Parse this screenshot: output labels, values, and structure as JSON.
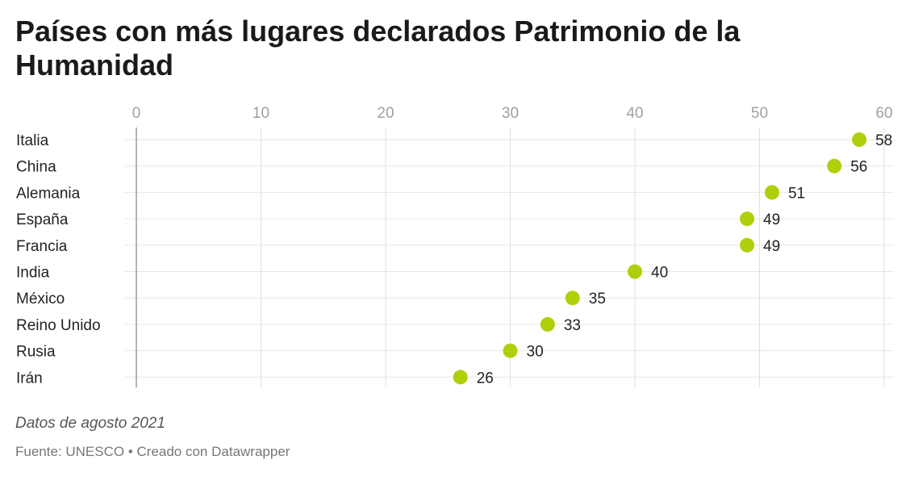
{
  "chart_data": {
    "type": "scatter",
    "title": "Países con más lugares declarados Patrimonio de la Humanidad",
    "categories": [
      "Italia",
      "China",
      "Alemania",
      "España",
      "Francia",
      "India",
      "México",
      "Reino Unido",
      "Rusia",
      "Irán"
    ],
    "values": [
      58,
      56,
      51,
      49,
      49,
      40,
      35,
      33,
      30,
      26
    ],
    "x_ticks": [
      "0",
      "10",
      "20",
      "30",
      "40",
      "50",
      "60"
    ],
    "xlim": [
      0,
      60
    ],
    "xlabel": "",
    "ylabel": "",
    "grid": true,
    "dot_color": "#b0cf0b"
  },
  "note": "Datos de agosto 2021",
  "footer": "Fuente: UNESCO • Creado con Datawrapper"
}
